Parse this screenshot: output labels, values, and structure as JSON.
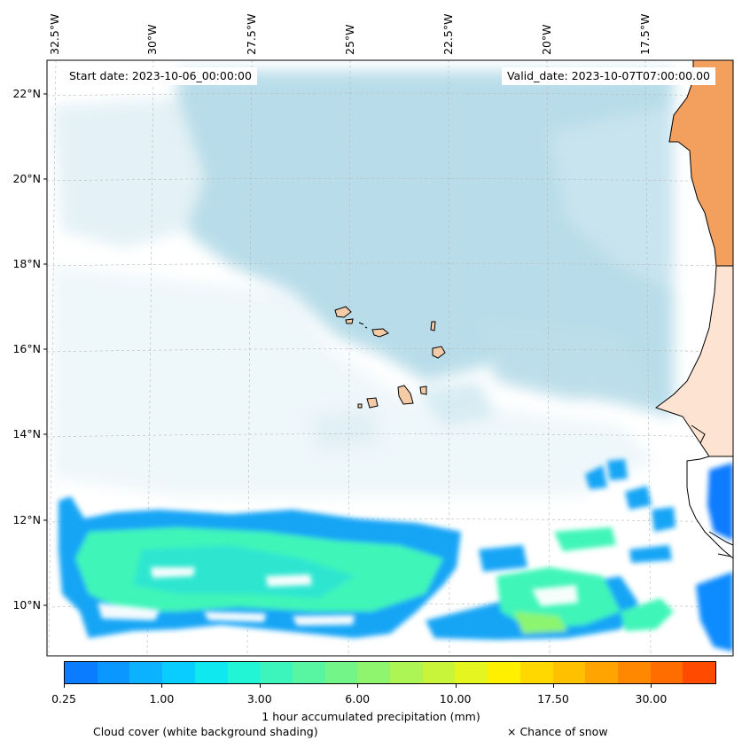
{
  "map": {
    "longitude_labels": [
      "32.5°W",
      "30°W",
      "27.5°W",
      "25°W",
      "22.5°W",
      "20°W",
      "17.5°W"
    ],
    "latitude_labels": [
      "22°N",
      "20°N",
      "18°N",
      "16°N",
      "14°N",
      "12°N",
      "10°N"
    ],
    "start_date": "Start date: 2023-10-06_00:00:00",
    "valid_date": "Valid_date: 2023-10-07T07:00:00.00",
    "colors": {
      "land_islands": "#f5cba7",
      "land_africa": "#f3a05e",
      "cloud": "#a9d5e5",
      "precip_low": "#12a5f5",
      "precip_mid": "#40f5b8"
    }
  },
  "colorbar": {
    "tick_labels": [
      "0.25",
      "1.00",
      "3.00",
      "6.00",
      "10.00",
      "17.50",
      "30.00"
    ],
    "colors": [
      "#0a7cff",
      "#0a97ff",
      "#0ab2ff",
      "#0acdff",
      "#10e8f0",
      "#22f5d6",
      "#3cf5bc",
      "#58f5a2",
      "#74f588",
      "#90f56e",
      "#acf554",
      "#c8f53a",
      "#e4f520",
      "#fff000",
      "#ffd800",
      "#ffc000",
      "#ffa400",
      "#ff8800",
      "#ff6c00",
      "#ff4a00"
    ],
    "label": "1 hour accumulated precipitation (mm)"
  },
  "legend": {
    "cloud_cover": "Cloud cover (white background shading)",
    "snow": "× Chance of snow"
  }
}
